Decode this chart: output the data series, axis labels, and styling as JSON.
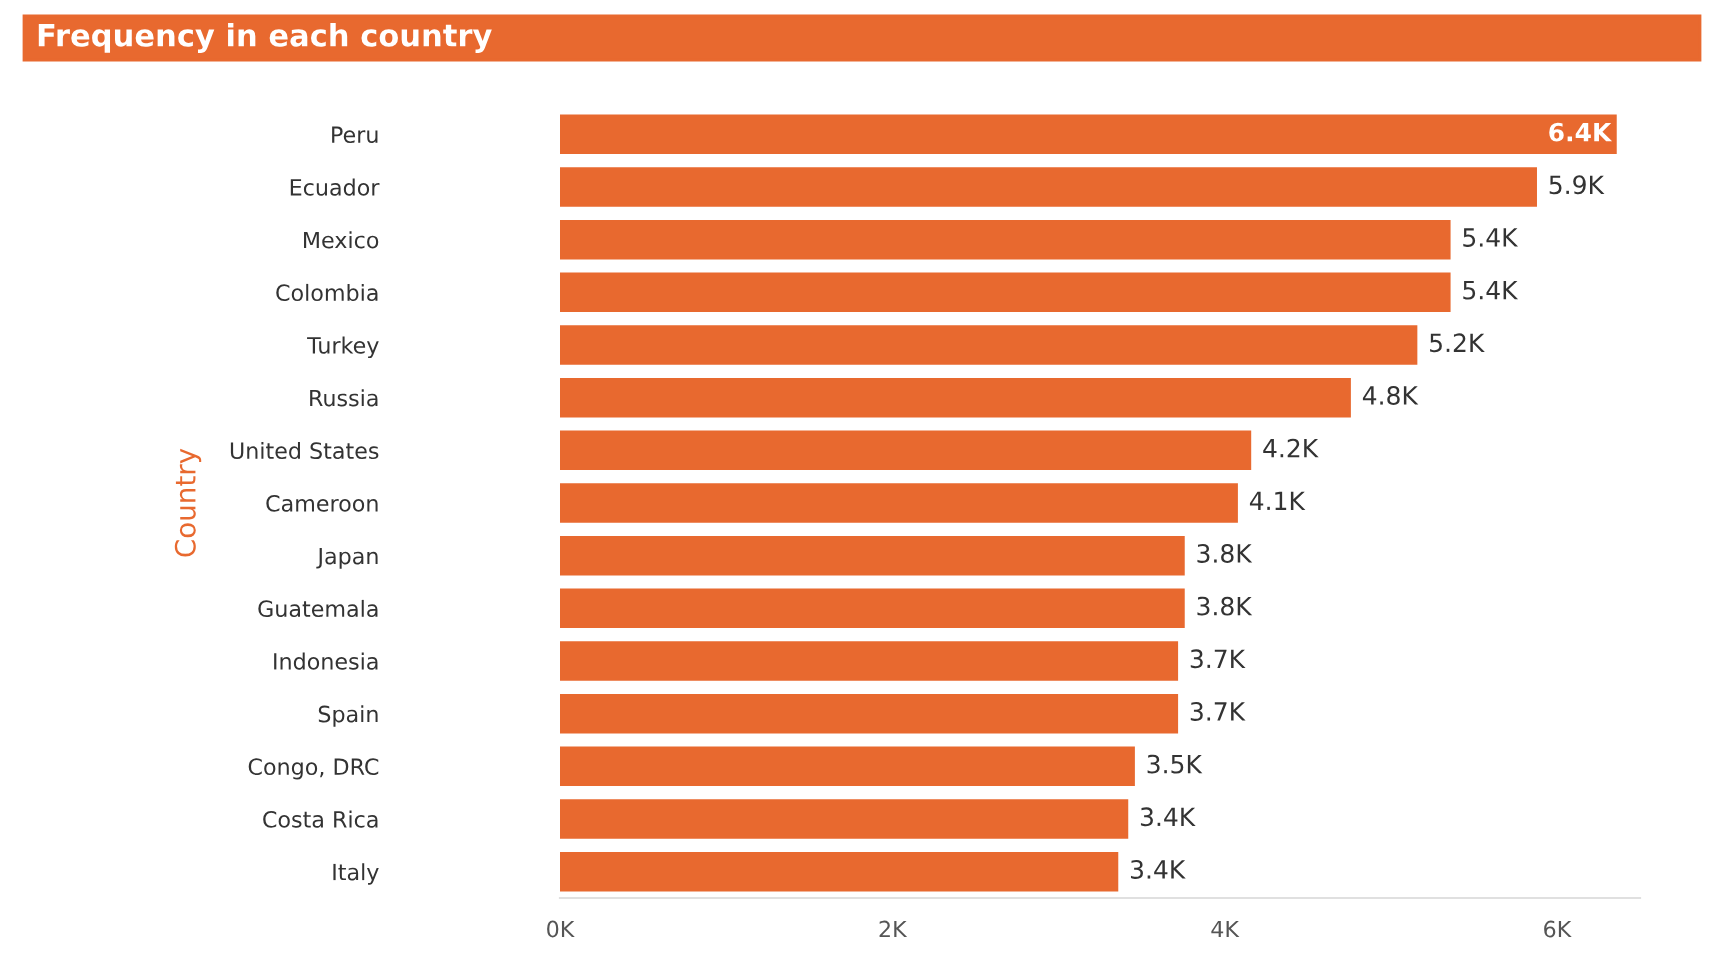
{
  "chart_data": {
    "type": "bar",
    "orientation": "horizontal",
    "title": "Frequency in each country",
    "ylabel": "Country",
    "categories": [
      "Peru",
      "Ecuador",
      "Mexico",
      "Colombia",
      "Turkey",
      "Russia",
      "United States",
      "Cameroon",
      "Japan",
      "Guatemala",
      "Indonesia",
      "Spain",
      "Congo, DRC",
      "Costa Rica",
      "Italy"
    ],
    "values": [
      6360,
      5880,
      5360,
      5360,
      5160,
      4760,
      4160,
      4080,
      3760,
      3760,
      3720,
      3720,
      3460,
      3420,
      3360
    ],
    "value_labels": [
      "6.4K",
      "5.9K",
      "5.4K",
      "5.4K",
      "5.2K",
      "4.8K",
      "4.2K",
      "4.1K",
      "3.8K",
      "3.8K",
      "3.7K",
      "3.7K",
      "3.5K",
      "3.4K",
      "3.4K"
    ],
    "color": "#e8692f",
    "xlim": [
      0,
      6500
    ],
    "xticks": [
      {
        "value": 0,
        "label": "0K"
      },
      {
        "value": 2000,
        "label": "2K"
      },
      {
        "value": 4000,
        "label": "4K"
      },
      {
        "value": 6000,
        "label": "6K"
      }
    ],
    "grid": false,
    "legend": false
  }
}
